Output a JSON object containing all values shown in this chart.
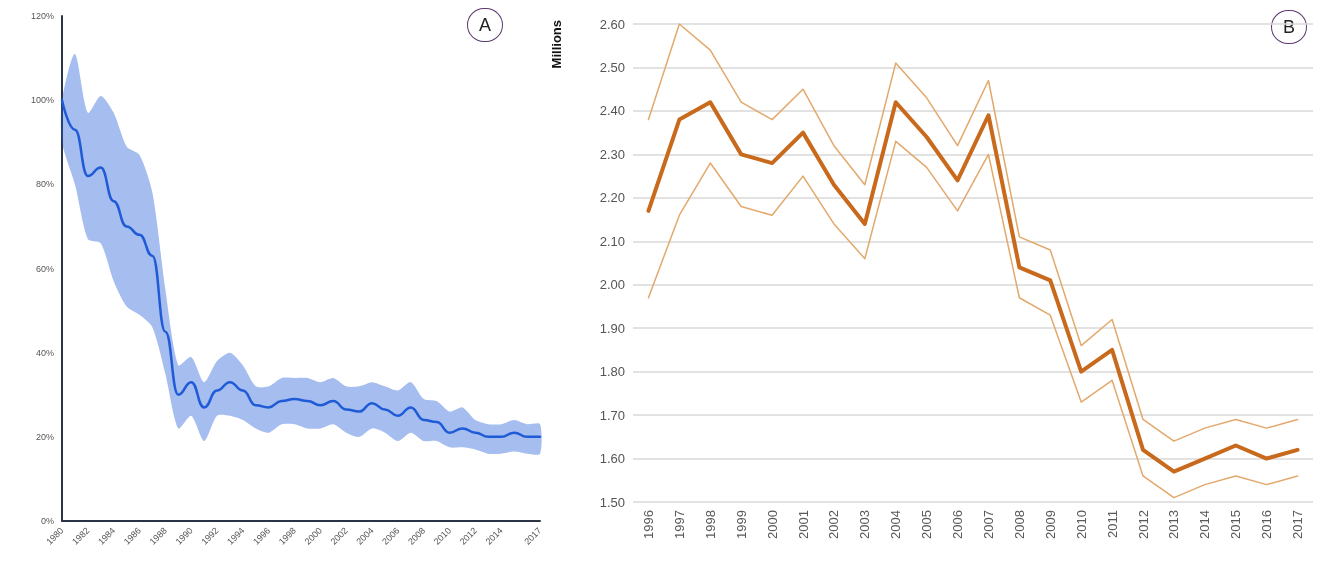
{
  "chart_data": [
    {
      "type": "line",
      "annotations": [
        "A"
      ],
      "marker": "none",
      "grid": false,
      "x": [
        1980,
        1981,
        1982,
        1983,
        1984,
        1985,
        1986,
        1987,
        1988,
        1989,
        1990,
        1991,
        1992,
        1993,
        1994,
        1995,
        1996,
        1997,
        1998,
        1999,
        2000,
        2001,
        2002,
        2003,
        2004,
        2005,
        2006,
        2007,
        2008,
        2009,
        2010,
        2011,
        2012,
        2013,
        2014,
        2015,
        2016,
        2017
      ],
      "series": [
        {
          "color": "#1f5bd6",
          "values": [
            100,
            93,
            82,
            84,
            76,
            70,
            68,
            63,
            45,
            30,
            33,
            27,
            31,
            33,
            31,
            27.5,
            27,
            28.5,
            29,
            28.5,
            27.5,
            28.5,
            26.5,
            26,
            28,
            26.5,
            25,
            27,
            24,
            23.5,
            21,
            22,
            21,
            20,
            20,
            21,
            20,
            20
          ],
          "lower": [
            90,
            80,
            67,
            66,
            57,
            51,
            49,
            46,
            35,
            22,
            25,
            19,
            25,
            25,
            24,
            22,
            21,
            23,
            23,
            22,
            22,
            23,
            21,
            20,
            22,
            21,
            19,
            21,
            19,
            19,
            17.5,
            17.5,
            17,
            16,
            16,
            16.5,
            16,
            16
          ],
          "upper": [
            100,
            111,
            97,
            101,
            97,
            89,
            87,
            78,
            55,
            37,
            39,
            33,
            38,
            40,
            37,
            32,
            32,
            34,
            34,
            34,
            33,
            34,
            32,
            32,
            33,
            32,
            31,
            33,
            29,
            28.5,
            26,
            27,
            24,
            23,
            23,
            24,
            23,
            23
          ]
        }
      ],
      "xlim": [
        1980,
        2017
      ],
      "xticks": [
        1980,
        1982,
        1984,
        1986,
        1988,
        1990,
        1992,
        1994,
        1996,
        1998,
        2000,
        2002,
        2004,
        2006,
        2008,
        2010,
        2012,
        2014,
        2017
      ],
      "ylim": [
        0,
        120
      ],
      "yticks": [
        {
          "value": 0,
          "label": "0%"
        },
        {
          "value": 20,
          "label": "20%"
        },
        {
          "value": 40,
          "label": "40%"
        },
        {
          "value": 60,
          "label": "60%"
        },
        {
          "value": 80,
          "label": "80%"
        },
        {
          "value": 100,
          "label": "100%"
        },
        {
          "value": 120,
          "label": "120%"
        }
      ]
    },
    {
      "type": "line",
      "annotations": [
        "B"
      ],
      "ylabel": "Millions",
      "marker": "none",
      "grid": "y",
      "categories": [
        "1996",
        "1997",
        "1998",
        "1999",
        "2000",
        "2001",
        "2002",
        "2003",
        "2004",
        "2005",
        "2006",
        "2007",
        "2008",
        "2009",
        "2010",
        "2011",
        "2012",
        "2013",
        "2014",
        "2015",
        "2016",
        "2017"
      ],
      "series": [
        {
          "color": "#c8691c",
          "values": [
            2.17,
            2.38,
            2.42,
            2.3,
            2.28,
            2.35,
            2.23,
            2.14,
            2.42,
            2.34,
            2.24,
            2.39,
            2.04,
            2.01,
            1.8,
            1.85,
            1.62,
            1.57,
            1.6,
            1.63,
            1.6,
            1.62
          ]
        },
        {
          "color": "#e3a86b",
          "values": [
            2.38,
            2.6,
            2.54,
            2.42,
            2.38,
            2.45,
            2.32,
            2.23,
            2.51,
            2.43,
            2.32,
            2.47,
            2.11,
            2.08,
            1.86,
            1.92,
            1.69,
            1.64,
            1.67,
            1.69,
            1.67,
            1.69
          ]
        },
        {
          "color": "#e3a86b",
          "values": [
            1.97,
            2.16,
            2.28,
            2.18,
            2.16,
            2.25,
            2.14,
            2.06,
            2.33,
            2.27,
            2.17,
            2.3,
            1.97,
            1.93,
            1.73,
            1.78,
            1.56,
            1.51,
            1.54,
            1.56,
            1.54,
            1.56
          ]
        }
      ],
      "ylim": [
        1.5,
        2.6
      ],
      "yticks": [
        {
          "value": 1.5,
          "label": "1.50"
        },
        {
          "value": 1.6,
          "label": "1.60"
        },
        {
          "value": 1.7,
          "label": "1.70"
        },
        {
          "value": 1.8,
          "label": "1.80"
        },
        {
          "value": 1.9,
          "label": "1.90"
        },
        {
          "value": 2.0,
          "label": "2.00"
        },
        {
          "value": 2.1,
          "label": "2.10"
        },
        {
          "value": 2.2,
          "label": "2.20"
        },
        {
          "value": 2.3,
          "label": "2.30"
        },
        {
          "value": 2.4,
          "label": "2.40"
        },
        {
          "value": 2.5,
          "label": "2.50"
        },
        {
          "value": 2.6,
          "label": "2.60"
        }
      ]
    }
  ]
}
